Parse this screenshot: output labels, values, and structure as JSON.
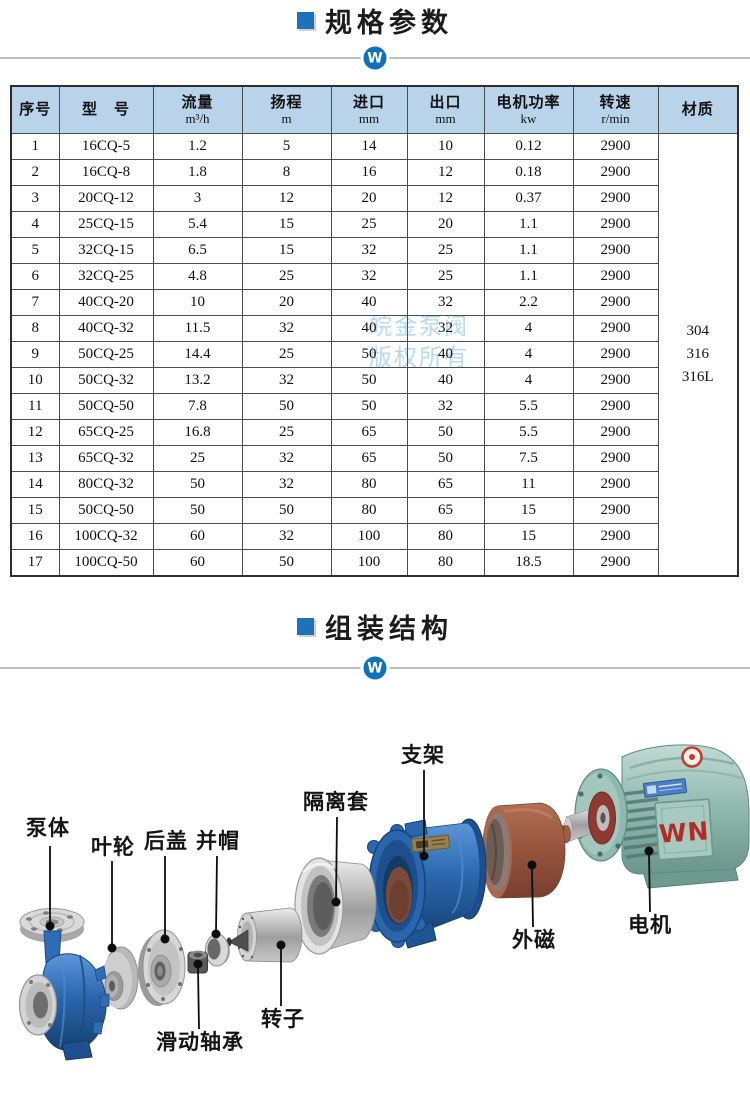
{
  "sections": {
    "spec_title": "规格参数",
    "assembly_title": "组装结构",
    "logo_letter": "W"
  },
  "table": {
    "headers": [
      {
        "label": "序号",
        "unit": ""
      },
      {
        "label": "型　号",
        "unit": ""
      },
      {
        "label": "流量",
        "unit": "m³/h"
      },
      {
        "label": "扬程",
        "unit": "m"
      },
      {
        "label": "进口",
        "unit": "mm"
      },
      {
        "label": "出口",
        "unit": "mm"
      },
      {
        "label": "电机功率",
        "unit": "kw"
      },
      {
        "label": "转速",
        "unit": "r/min"
      },
      {
        "label": "材质",
        "unit": ""
      }
    ],
    "rows": [
      {
        "no": "1",
        "model": "16CQ-5",
        "flow": "1.2",
        "head": "5",
        "inlet": "14",
        "outlet": "10",
        "power": "0.12",
        "speed": "2900"
      },
      {
        "no": "2",
        "model": "16CQ-8",
        "flow": "1.8",
        "head": "8",
        "inlet": "16",
        "outlet": "12",
        "power": "0.18",
        "speed": "2900"
      },
      {
        "no": "3",
        "model": "20CQ-12",
        "flow": "3",
        "head": "12",
        "inlet": "20",
        "outlet": "12",
        "power": "0.37",
        "speed": "2900"
      },
      {
        "no": "4",
        "model": "25CQ-15",
        "flow": "5.4",
        "head": "15",
        "inlet": "25",
        "outlet": "20",
        "power": "1.1",
        "speed": "2900"
      },
      {
        "no": "5",
        "model": "32CQ-15",
        "flow": "6.5",
        "head": "15",
        "inlet": "32",
        "outlet": "25",
        "power": "1.1",
        "speed": "2900"
      },
      {
        "no": "6",
        "model": "32CQ-25",
        "flow": "4.8",
        "head": "25",
        "inlet": "32",
        "outlet": "25",
        "power": "1.1",
        "speed": "2900"
      },
      {
        "no": "7",
        "model": "40CQ-20",
        "flow": "10",
        "head": "20",
        "inlet": "40",
        "outlet": "32",
        "power": "2.2",
        "speed": "2900"
      },
      {
        "no": "8",
        "model": "40CQ-32",
        "flow": "11.5",
        "head": "32",
        "inlet": "40",
        "outlet": "32",
        "power": "4",
        "speed": "2900"
      },
      {
        "no": "9",
        "model": "50CQ-25",
        "flow": "14.4",
        "head": "25",
        "inlet": "50",
        "outlet": "40",
        "power": "4",
        "speed": "2900"
      },
      {
        "no": "10",
        "model": "50CQ-32",
        "flow": "13.2",
        "head": "32",
        "inlet": "50",
        "outlet": "40",
        "power": "4",
        "speed": "2900"
      },
      {
        "no": "11",
        "model": "50CQ-50",
        "flow": "7.8",
        "head": "50",
        "inlet": "50",
        "outlet": "32",
        "power": "5.5",
        "speed": "2900"
      },
      {
        "no": "12",
        "model": "65CQ-25",
        "flow": "16.8",
        "head": "25",
        "inlet": "65",
        "outlet": "50",
        "power": "5.5",
        "speed": "2900"
      },
      {
        "no": "13",
        "model": "65CQ-32",
        "flow": "25",
        "head": "32",
        "inlet": "65",
        "outlet": "50",
        "power": "7.5",
        "speed": "2900"
      },
      {
        "no": "14",
        "model": "80CQ-32",
        "flow": "50",
        "head": "32",
        "inlet": "80",
        "outlet": "65",
        "power": "11",
        "speed": "2900"
      },
      {
        "no": "15",
        "model": "50CQ-50",
        "flow": "50",
        "head": "50",
        "inlet": "80",
        "outlet": "65",
        "power": "15",
        "speed": "2900"
      },
      {
        "no": "16",
        "model": "100CQ-32",
        "flow": "60",
        "head": "32",
        "inlet": "100",
        "outlet": "80",
        "power": "15",
        "speed": "2900"
      },
      {
        "no": "17",
        "model": "100CQ-50",
        "flow": "60",
        "head": "50",
        "inlet": "100",
        "outlet": "80",
        "power": "18.5",
        "speed": "2900"
      }
    ],
    "material": [
      "304",
      "316",
      "316L"
    ]
  },
  "watermark": {
    "line1": "皖金泵阀",
    "line2": "版权所有"
  },
  "diagram": {
    "labels": {
      "pump_body": "泵体",
      "impeller": "叶轮",
      "rear_cover": "后盖",
      "cap": "并帽",
      "sliding_bearing": "滑动轴承",
      "rotor": "转子",
      "isolation_sleeve": "隔离套",
      "bracket": "支架",
      "outer_magnet": "外磁",
      "motor": "电机"
    },
    "motor_brand": "WN"
  },
  "colors": {
    "accent_blue": "#1170b8",
    "header_bg": "#b8d3ea",
    "watermark_blue": "#b7d9f3"
  }
}
